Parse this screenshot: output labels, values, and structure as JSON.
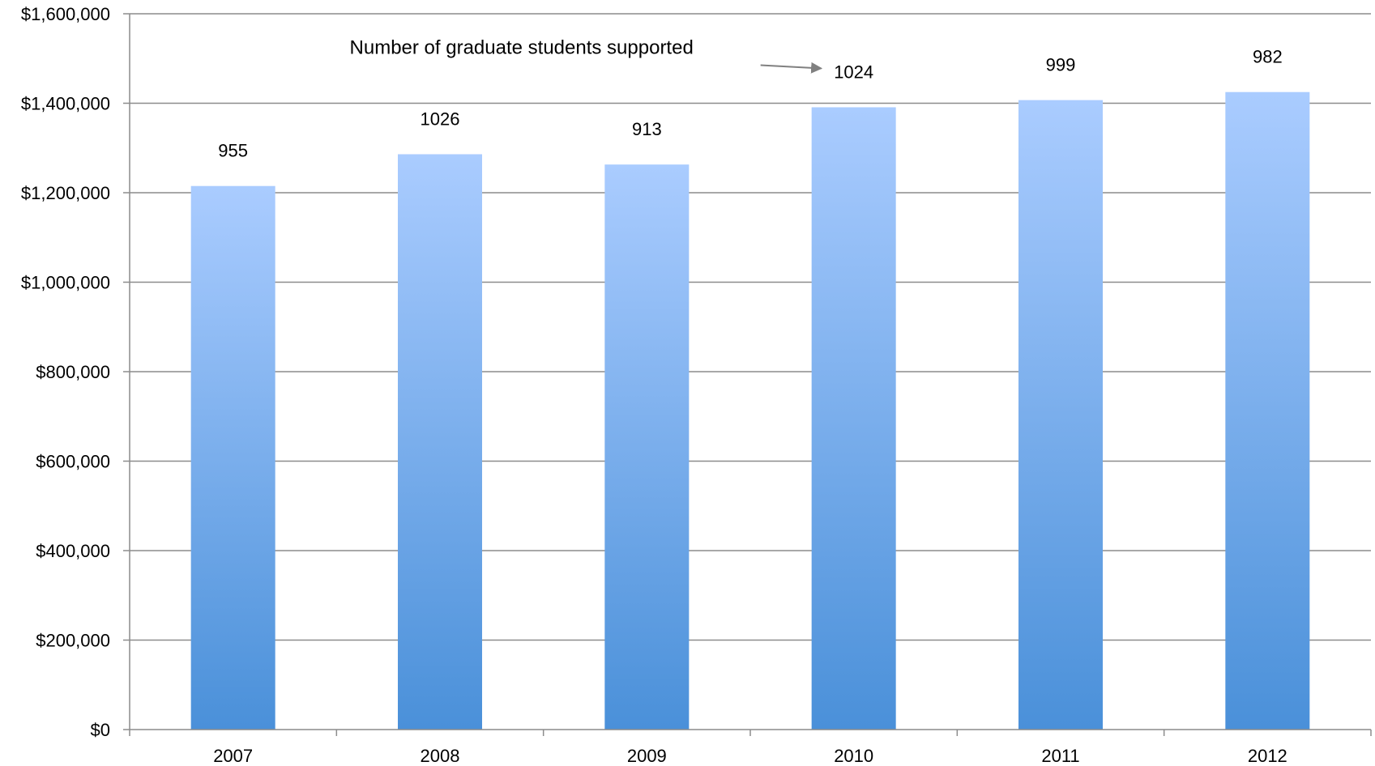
{
  "chart_data": {
    "type": "bar",
    "categories": [
      "2007",
      "2008",
      "2009",
      "2010",
      "2011",
      "2012"
    ],
    "values": [
      1215000,
      1286000,
      1263000,
      1391000,
      1407000,
      1425000
    ],
    "data_labels": [
      "955",
      "1026",
      "913",
      "1024",
      "999",
      "982"
    ],
    "title": "",
    "xlabel": "",
    "ylabel": "",
    "ylim": [
      0,
      1600000
    ],
    "yticks": [
      0,
      200000,
      400000,
      600000,
      800000,
      1000000,
      1200000,
      1400000,
      1600000
    ],
    "ytick_labels": [
      "$0",
      "$200,000",
      "$400,000",
      "$600,000",
      "$800,000",
      "$1,000,000",
      "$1,200,000",
      "$1,400,000",
      "$1,600,000"
    ],
    "grid": true,
    "legend": "none",
    "annotation": {
      "text": "Number of graduate students supported",
      "target_category": "2010"
    },
    "colors": {
      "bar_top": "#aaccff",
      "bar_bottom": "#4a90d9",
      "grid": "#8c8c8c",
      "axis": "#8c8c8c",
      "arrow": "#808080"
    }
  }
}
